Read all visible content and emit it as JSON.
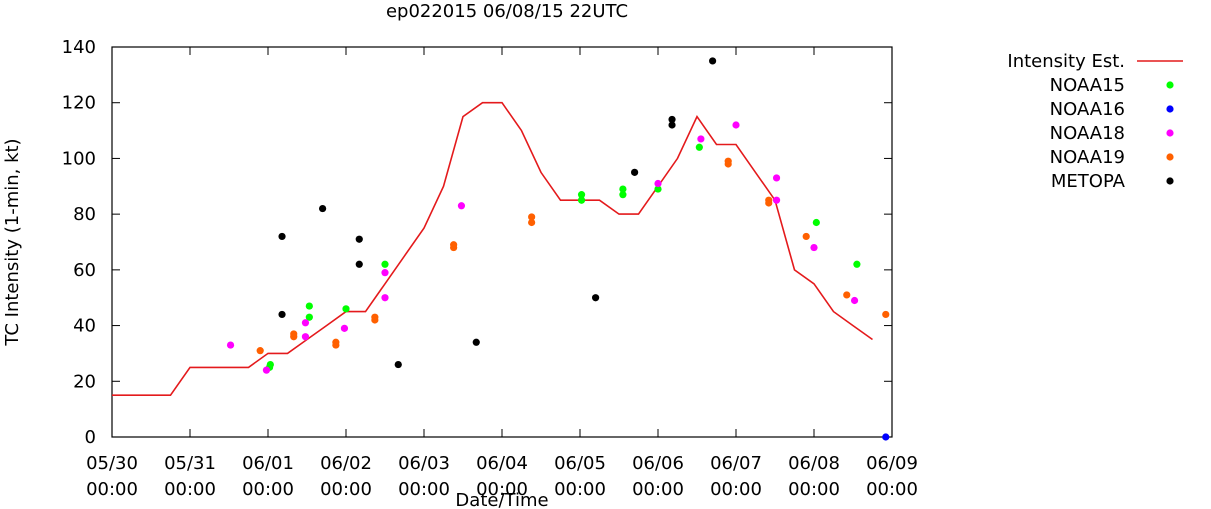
{
  "chart_data": {
    "type": "scatter",
    "title": "ep022015 06/08/15 22UTC",
    "xlabel": "Date/Time",
    "ylabel": "TC Intensity (1-min, kt)",
    "ylim": [
      0,
      140
    ],
    "yticks": [
      0,
      20,
      40,
      60,
      80,
      100,
      120,
      140
    ],
    "xlim": [
      0,
      10
    ],
    "xticks": [
      {
        "x": 0,
        "line1": "05/30",
        "line2": "00:00"
      },
      {
        "x": 1,
        "line1": "05/31",
        "line2": "00:00"
      },
      {
        "x": 2,
        "line1": "06/01",
        "line2": "00:00"
      },
      {
        "x": 3,
        "line1": "06/02",
        "line2": "00:00"
      },
      {
        "x": 4,
        "line1": "06/03",
        "line2": "00:00"
      },
      {
        "x": 5,
        "line1": "06/04",
        "line2": "00:00"
      },
      {
        "x": 6,
        "line1": "06/05",
        "line2": "00:00"
      },
      {
        "x": 7,
        "line1": "06/06",
        "line2": "00:00"
      },
      {
        "x": 8,
        "line1": "06/07",
        "line2": "00:00"
      },
      {
        "x": 9,
        "line1": "06/08",
        "line2": "00:00"
      },
      {
        "x": 10,
        "line1": "06/09",
        "line2": "00:00"
      }
    ],
    "grid": false,
    "legend_position": "right",
    "series": [
      {
        "name": "Intensity Est.",
        "kind": "line",
        "color": "#e41a1c",
        "points": [
          [
            0,
            15
          ],
          [
            0.75,
            15
          ],
          [
            1,
            25
          ],
          [
            1.75,
            25
          ],
          [
            2,
            30
          ],
          [
            2.25,
            30
          ],
          [
            2.5,
            35
          ],
          [
            2.75,
            40
          ],
          [
            3,
            45
          ],
          [
            3.25,
            45
          ],
          [
            3.5,
            55
          ],
          [
            3.75,
            65
          ],
          [
            4,
            75
          ],
          [
            4.25,
            90
          ],
          [
            4.5,
            115
          ],
          [
            4.75,
            120
          ],
          [
            5,
            120
          ],
          [
            5.25,
            110
          ],
          [
            5.5,
            95
          ],
          [
            5.75,
            85
          ],
          [
            6,
            85
          ],
          [
            6.25,
            85
          ],
          [
            6.5,
            80
          ],
          [
            6.75,
            80
          ],
          [
            7,
            90
          ],
          [
            7.25,
            100
          ],
          [
            7.5,
            115
          ],
          [
            7.75,
            105
          ],
          [
            8,
            105
          ],
          [
            8.25,
            95
          ],
          [
            8.5,
            85
          ],
          [
            8.75,
            60
          ],
          [
            9,
            55
          ],
          [
            9.25,
            45
          ],
          [
            9.5,
            40
          ],
          [
            9.75,
            35
          ]
        ]
      },
      {
        "name": "NOAA15",
        "kind": "points",
        "color": "#00ff00",
        "points": [
          [
            2.03,
            26
          ],
          [
            2.02,
            25
          ],
          [
            2.53,
            47
          ],
          [
            2.53,
            43
          ],
          [
            3,
            46
          ],
          [
            3.5,
            62
          ],
          [
            6.02,
            87
          ],
          [
            6.02,
            85
          ],
          [
            6.55,
            89
          ],
          [
            6.55,
            87
          ],
          [
            7,
            89
          ],
          [
            7.53,
            104
          ],
          [
            9.03,
            77
          ],
          [
            9.55,
            62
          ]
        ]
      },
      {
        "name": "NOAA16",
        "kind": "points",
        "color": "#0000ff",
        "points": [
          [
            9.92,
            0
          ]
        ]
      },
      {
        "name": "NOAA18",
        "kind": "points",
        "color": "#ff00ff",
        "points": [
          [
            1.52,
            33
          ],
          [
            1.98,
            24
          ],
          [
            2.48,
            41
          ],
          [
            2.48,
            36
          ],
          [
            2.98,
            39
          ],
          [
            3.5,
            59
          ],
          [
            3.5,
            50
          ],
          [
            4.48,
            83
          ],
          [
            7,
            91
          ],
          [
            7.55,
            107
          ],
          [
            8,
            112
          ],
          [
            8.52,
            93
          ],
          [
            8.52,
            85
          ],
          [
            9,
            68
          ],
          [
            9.52,
            49
          ]
        ]
      },
      {
        "name": "NOAA19",
        "kind": "points",
        "color": "#ff6000",
        "points": [
          [
            1.9,
            31
          ],
          [
            2.33,
            37
          ],
          [
            2.33,
            36
          ],
          [
            2.87,
            34
          ],
          [
            2.87,
            33
          ],
          [
            3.37,
            43
          ],
          [
            3.37,
            42
          ],
          [
            4.38,
            69
          ],
          [
            4.38,
            68
          ],
          [
            5.38,
            79
          ],
          [
            5.38,
            77
          ],
          [
            7.9,
            99
          ],
          [
            7.9,
            98
          ],
          [
            8.42,
            85
          ],
          [
            8.42,
            84
          ],
          [
            8.9,
            72
          ],
          [
            9.42,
            51
          ],
          [
            9.92,
            44
          ]
        ]
      },
      {
        "name": "METOPA",
        "kind": "points",
        "color": "#000000",
        "points": [
          [
            2.18,
            72
          ],
          [
            2.18,
            44
          ],
          [
            2.7,
            82
          ],
          [
            3.17,
            71
          ],
          [
            3.17,
            62
          ],
          [
            3.67,
            26
          ],
          [
            4.67,
            34
          ],
          [
            6.2,
            50
          ],
          [
            6.7,
            95
          ],
          [
            7.18,
            114
          ],
          [
            7.18,
            112
          ],
          [
            7.7,
            135
          ]
        ]
      }
    ]
  }
}
